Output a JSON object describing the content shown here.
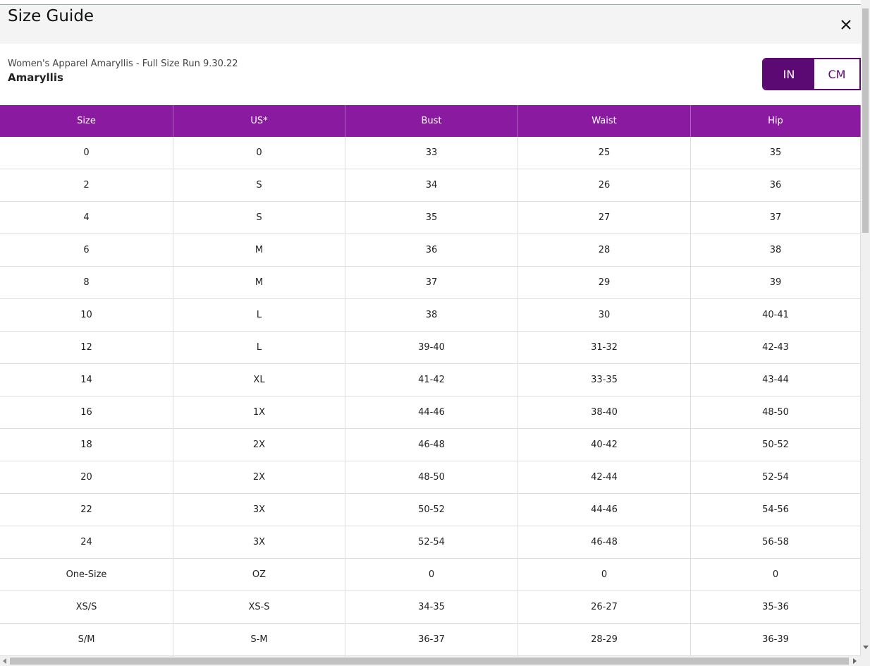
{
  "header": {
    "title": "Size Guide"
  },
  "subtitle": "Women's Apparel Amaryllis - Full Size Run 9.30.22",
  "brand": "Amaryllis",
  "units": [
    "IN",
    "CM"
  ],
  "table": {
    "columns": [
      "Size",
      "US*",
      "Bust",
      "Waist",
      "Hip"
    ],
    "rows": [
      [
        "0",
        "0",
        "33",
        "25",
        "35"
      ],
      [
        "2",
        "S",
        "34",
        "26",
        "36"
      ],
      [
        "4",
        "S",
        "35",
        "27",
        "37"
      ],
      [
        "6",
        "M",
        "36",
        "28",
        "38"
      ],
      [
        "8",
        "M",
        "37",
        "29",
        "39"
      ],
      [
        "10",
        "L",
        "38",
        "30",
        "40-41"
      ],
      [
        "12",
        "L",
        "39-40",
        "31-32",
        "42-43"
      ],
      [
        "14",
        "XL",
        "41-42",
        "33-35",
        "43-44"
      ],
      [
        "16",
        "1X",
        "44-46",
        "38-40",
        "48-50"
      ],
      [
        "18",
        "2X",
        "46-48",
        "40-42",
        "50-52"
      ],
      [
        "20",
        "2X",
        "48-50",
        "42-44",
        "52-54"
      ],
      [
        "22",
        "3X",
        "50-52",
        "44-46",
        "54-56"
      ],
      [
        "24",
        "3X",
        "52-54",
        "46-48",
        "56-58"
      ],
      [
        "One-Size",
        "OZ",
        "0",
        "0",
        "0"
      ],
      [
        "XS/S",
        "XS-S",
        "34-35",
        "26-27",
        "35-36"
      ],
      [
        "S/M",
        "S-M",
        "36-37",
        "28-29",
        "36-39"
      ]
    ]
  }
}
